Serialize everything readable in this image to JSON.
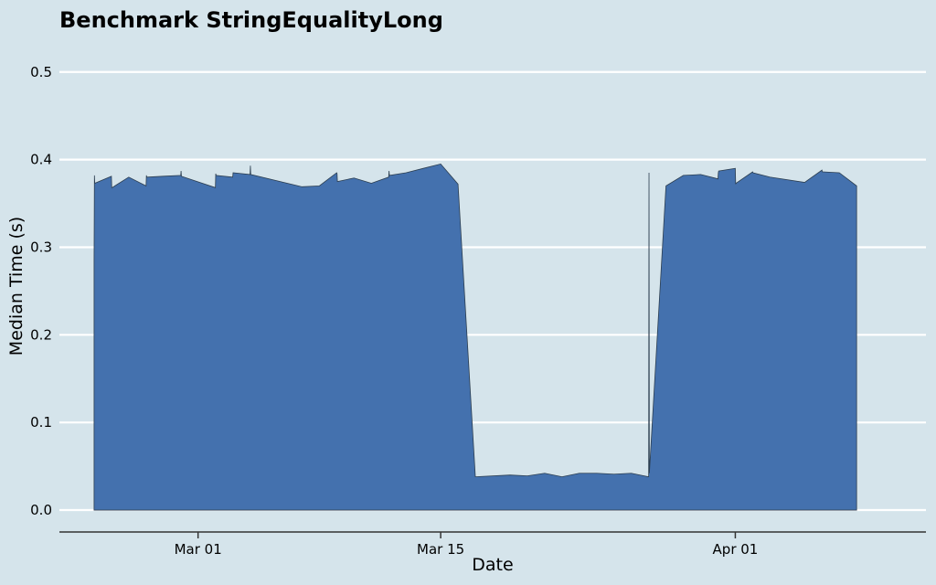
{
  "chart_data": {
    "type": "area",
    "title": "Benchmark StringEqualityLong",
    "xlabel": "Date",
    "ylabel": "Median Time (s)",
    "x_axis_type": "date",
    "xlim": [
      "2024-02-22",
      "2024-04-12"
    ],
    "ylim": [
      -0.025,
      0.53
    ],
    "x_ticks": [
      {
        "date": "2024-03-01",
        "label": "Mar 01"
      },
      {
        "date": "2024-03-15",
        "label": "Mar 15"
      },
      {
        "date": "2024-04-01",
        "label": "Apr 01"
      }
    ],
    "y_ticks": [
      {
        "value": 0.0,
        "label": "0.0"
      },
      {
        "value": 0.1,
        "label": "0.1"
      },
      {
        "value": 0.2,
        "label": "0.2"
      },
      {
        "value": 0.3,
        "label": "0.3"
      },
      {
        "value": 0.4,
        "label": "0.4"
      },
      {
        "value": 0.5,
        "label": "0.5"
      }
    ],
    "grid": "horizontal",
    "legend": "none",
    "colors": {
      "background": "#d5e4eb",
      "area_fill": "#4471ae",
      "area_edge": "#2c3e50",
      "grid": "#ffffff",
      "axis": "#333333"
    },
    "series": [
      {
        "x": [
          "2024-02-24T00:00",
          "2024-02-24T00:00",
          "2024-02-24T00:00",
          "2024-02-25T00:00",
          "2024-02-25T00:00",
          "2024-02-25T00:00",
          "2024-02-26T00:00",
          "2024-02-27T00:00",
          "2024-02-27T00:00",
          "2024-02-27T00:00",
          "2024-02-28T00:00",
          "2024-02-29T00:00",
          "2024-02-29T00:00",
          "2024-02-29T00:00",
          "2024-03-02T00:00",
          "2024-03-02T00:00",
          "2024-03-02T00:00",
          "2024-03-03T00:00",
          "2024-03-03T00:00",
          "2024-03-03T00:00",
          "2024-03-04T00:00",
          "2024-03-04T00:00",
          "2024-03-04T00:00",
          "2024-03-07T00:00",
          "2024-03-08T00:00",
          "2024-03-09T00:00",
          "2024-03-09T00:00",
          "2024-03-09T00:00",
          "2024-03-10T00:00",
          "2024-03-11T00:00",
          "2024-03-12T00:00",
          "2024-03-12T00:00",
          "2024-03-12T00:00",
          "2024-03-13T00:00",
          "2024-03-14T00:00",
          "2024-03-15T00:00",
          "2024-03-16T00:00",
          "2024-03-17T00:00",
          "2024-03-19T00:00",
          "2024-03-20T00:00",
          "2024-03-21T00:00",
          "2024-03-22T00:00",
          "2024-03-23T00:00",
          "2024-03-24T00:00",
          "2024-03-25T00:00",
          "2024-03-26T00:00",
          "2024-03-27T00:00",
          "2024-03-27T00:00",
          "2024-03-27T00:00",
          "2024-03-28T00:00",
          "2024-03-29T00:00",
          "2024-03-30T00:00",
          "2024-03-31T00:00",
          "2024-03-31T00:00",
          "2024-03-31T00:00",
          "2024-04-01T00:00",
          "2024-04-01T00:00",
          "2024-04-01T00:00",
          "2024-04-02T00:00",
          "2024-04-02T00:00",
          "2024-04-03T00:00",
          "2024-04-05T00:00",
          "2024-04-06T00:00",
          "2024-04-06T00:00",
          "2024-04-06T00:00",
          "2024-04-07T00:00",
          "2024-04-08T00:00"
        ],
        "y": [
          0.285,
          0.382,
          0.373,
          0.381,
          0.368,
          0.368,
          0.38,
          0.37,
          0.382,
          0.38,
          0.381,
          0.382,
          0.387,
          0.381,
          0.368,
          0.384,
          0.382,
          0.38,
          0.385,
          0.385,
          0.383,
          0.393,
          0.383,
          0.369,
          0.37,
          0.385,
          0.384,
          0.375,
          0.379,
          0.373,
          0.38,
          0.387,
          0.382,
          0.385,
          0.39,
          0.395,
          0.372,
          0.038,
          0.04,
          0.039,
          0.042,
          0.038,
          0.042,
          0.042,
          0.041,
          0.042,
          0.038,
          0.385,
          0.042,
          0.37,
          0.382,
          0.383,
          0.378,
          0.385,
          0.387,
          0.39,
          0.372,
          0.373,
          0.386,
          0.385,
          0.38,
          0.374,
          0.388,
          0.386,
          0.386,
          0.385,
          0.37
        ]
      }
    ]
  }
}
